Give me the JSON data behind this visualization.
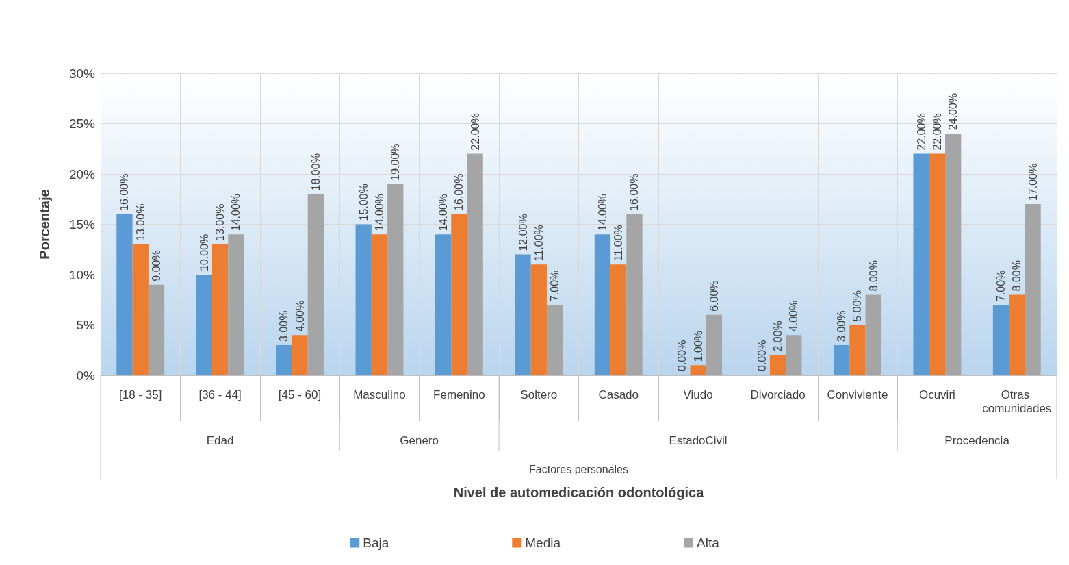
{
  "chart_data": {
    "type": "bar",
    "ylabel": "Porcentaje",
    "categories": [
      "[18 - 35]",
      "[36 - 44]",
      "[45 - 60]",
      "Masculino",
      "Femenino",
      "Soltero",
      "Casado",
      "Viudo",
      "Divorciado",
      "Conviviente",
      "Ocuviri",
      "Otras comunidades"
    ],
    "series": [
      {
        "name": "Baja",
        "color": "#5b9bd5",
        "values": [
          16,
          10,
          3,
          15,
          14,
          12,
          14,
          0,
          0,
          3,
          22,
          7
        ],
        "value_labels": [
          "16.00%",
          "10.00%",
          "3.00%",
          "15.00%",
          "14.00%",
          "12.00%",
          "14.00%",
          "0.00%",
          "0.00%",
          "3.00%",
          "22.00%",
          "7.00%"
        ]
      },
      {
        "name": "Media",
        "color": "#ed7d31",
        "values": [
          13,
          13,
          4,
          14,
          16,
          11,
          11,
          1,
          2,
          5,
          22,
          8
        ],
        "value_labels": [
          "13.00%",
          "13.00%",
          "4.00%",
          "14.00%",
          "16.00%",
          "11.00%",
          "11.00%",
          "1.00%",
          "2.00%",
          "5.00%",
          "22.00%",
          "8.00%"
        ]
      },
      {
        "name": "Alta",
        "color": "#a5a5a5",
        "values": [
          9,
          14,
          18,
          19,
          22,
          7,
          16,
          6,
          4,
          8,
          24,
          17
        ],
        "value_labels": [
          "9.00%",
          "14.00%",
          "18.00%",
          "19.00%",
          "22.00%",
          "7.00%",
          "16.00%",
          "6.00%",
          "4.00%",
          "8.00%",
          "24.00%",
          "17.00%"
        ]
      }
    ],
    "ylim": [
      0,
      30
    ],
    "yticks": [
      {
        "value": 0,
        "label": "0%"
      },
      {
        "value": 5,
        "label": "5%"
      },
      {
        "value": 10,
        "label": "10%"
      },
      {
        "value": 15,
        "label": "15%"
      },
      {
        "value": 20,
        "label": "20%"
      },
      {
        "value": 25,
        "label": "25%"
      },
      {
        "value": 30,
        "label": "30%"
      }
    ],
    "grid": true,
    "legend": "bottom",
    "annotations": [
      "Edad",
      "Genero",
      "EstadoCivil",
      "Procedencia",
      "Factores personales",
      "Nivel de automedicación odontológica"
    ]
  }
}
